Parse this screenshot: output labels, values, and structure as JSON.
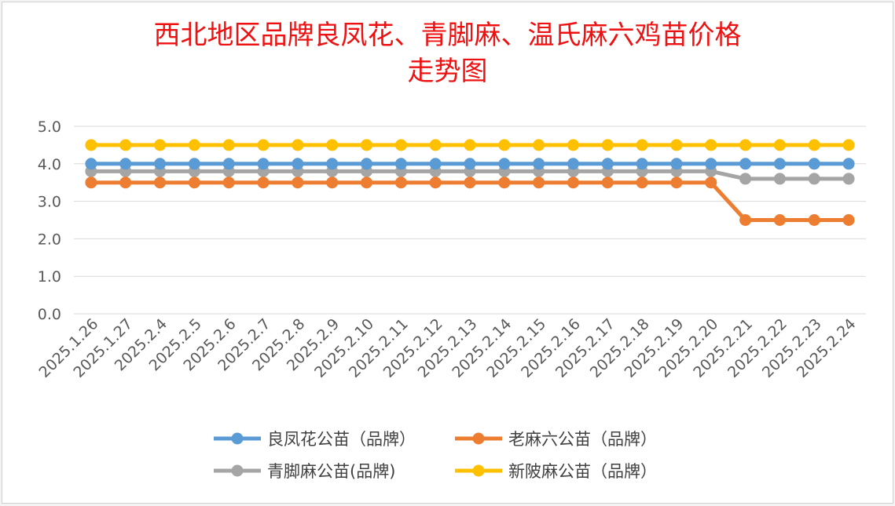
{
  "chart_data": {
    "type": "line",
    "title_lines": [
      "西北地区品牌良凤花、青脚麻、温氏麻六鸡苗价格",
      "走势图"
    ],
    "categories": [
      "2025.1.26",
      "2025.1.27",
      "2025.2.4",
      "2025.2.5",
      "2025.2.6",
      "2025.2.7",
      "2025.2.8",
      "2025.2.9",
      "2025.2.10",
      "2025.2.11",
      "2025.2.12",
      "2025.2.13",
      "2025.2.14",
      "2025.2.15",
      "2025.2.16",
      "2025.2.17",
      "2025.2.18",
      "2025.2.19",
      "2025.2.20",
      "2025.2.21",
      "2025.2.22",
      "2025.2.23",
      "2025.2.24"
    ],
    "yticks": [
      "0.0",
      "1.0",
      "2.0",
      "3.0",
      "4.0",
      "5.0"
    ],
    "ylim": [
      0,
      5
    ],
    "grid": true,
    "legend_position": "bottom",
    "series": [
      {
        "name": "良凤花公苗（品牌）",
        "color": "#5b9bd5",
        "values": [
          4,
          4,
          4,
          4,
          4,
          4,
          4,
          4,
          4,
          4,
          4,
          4,
          4,
          4,
          4,
          4,
          4,
          4,
          4,
          4,
          4,
          4,
          4
        ]
      },
      {
        "name": "老麻六公苗（品牌）",
        "color": "#ed7d31",
        "values": [
          3.5,
          3.5,
          3.5,
          3.5,
          3.5,
          3.5,
          3.5,
          3.5,
          3.5,
          3.5,
          3.5,
          3.5,
          3.5,
          3.5,
          3.5,
          3.5,
          3.5,
          3.5,
          3.5,
          2.5,
          2.5,
          2.5,
          2.5
        ]
      },
      {
        "name": "青脚麻公苗(品牌)",
        "color": "#a5a5a5",
        "values": [
          3.8,
          3.8,
          3.8,
          3.8,
          3.8,
          3.8,
          3.8,
          3.8,
          3.8,
          3.8,
          3.8,
          3.8,
          3.8,
          3.8,
          3.8,
          3.8,
          3.8,
          3.8,
          3.8,
          3.6,
          3.6,
          3.6,
          3.6
        ]
      },
      {
        "name": "新陂麻公苗（品牌）",
        "color": "#ffc000",
        "values": [
          4.5,
          4.5,
          4.5,
          4.5,
          4.5,
          4.5,
          4.5,
          4.5,
          4.5,
          4.5,
          4.5,
          4.5,
          4.5,
          4.5,
          4.5,
          4.5,
          4.5,
          4.5,
          4.5,
          4.5,
          4.5,
          4.5,
          4.5
        ]
      }
    ]
  }
}
